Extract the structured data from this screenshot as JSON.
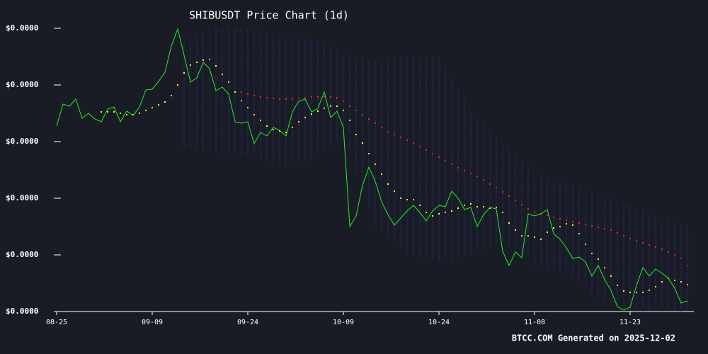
{
  "chart_data": {
    "type": "line",
    "title": "SHIBUSDT Price Chart (1d)",
    "footer": "BTCC.COM Generated on 2025-12-02",
    "categories": [
      "08-25",
      null,
      null,
      null,
      null,
      null,
      null,
      null,
      null,
      null,
      null,
      null,
      null,
      null,
      null,
      "09-09",
      null,
      null,
      null,
      null,
      null,
      null,
      null,
      null,
      null,
      null,
      null,
      null,
      null,
      null,
      "09-24",
      null,
      null,
      null,
      null,
      null,
      null,
      null,
      null,
      null,
      null,
      null,
      null,
      null,
      null,
      "10-09",
      null,
      null,
      null,
      null,
      null,
      null,
      null,
      null,
      null,
      null,
      null,
      null,
      null,
      null,
      "10-24",
      null,
      null,
      null,
      null,
      null,
      null,
      null,
      null,
      null,
      null,
      null,
      null,
      null,
      null,
      "11-08",
      null,
      null,
      null,
      null,
      null,
      null,
      null,
      null,
      null,
      null,
      null,
      null,
      null,
      null,
      "11-23",
      null,
      null,
      null,
      null,
      null,
      null,
      null,
      null,
      null
    ],
    "ylim": [
      7e-06,
      1.5e-05
    ],
    "yticks": [
      {
        "value": 7e-06,
        "label": "$0.0000"
      },
      {
        "value": 8.6e-06,
        "label": "$0.0000"
      },
      {
        "value": 1.02e-05,
        "label": "$0.0000"
      },
      {
        "value": 1.18e-05,
        "label": "$0.0000"
      },
      {
        "value": 1.34e-05,
        "label": "$0.0000"
      },
      {
        "value": 1.5e-05,
        "label": "$0.0000"
      }
    ],
    "band": {
      "color": "#2a2f8a",
      "upper": [
        null,
        null,
        null,
        null,
        null,
        null,
        null,
        null,
        null,
        null,
        null,
        null,
        null,
        null,
        null,
        null,
        null,
        null,
        null,
        null,
        1.46e-05,
        1.47e-05,
        1.48e-05,
        1.49e-05,
        1.496e-05,
        1.5e-05,
        1.5e-05,
        1.5e-05,
        1.5e-05,
        1.5e-05,
        1.5e-05,
        1.496e-05,
        1.492e-05,
        1.488e-05,
        1.484e-05,
        1.48e-05,
        1.476e-05,
        1.474e-05,
        1.472e-05,
        1.47e-05,
        1.47e-05,
        1.464e-05,
        1.456e-05,
        1.448e-05,
        1.44e-05,
        1.43e-05,
        1.424e-05,
        1.42e-05,
        1.416e-05,
        1.412e-05,
        1.41e-05,
        1.412e-05,
        1.414e-05,
        1.416e-05,
        1.418e-05,
        1.42e-05,
        1.42e-05,
        1.42e-05,
        1.42e-05,
        1.42e-05,
        1.42e-05,
        1.39e-05,
        1.36e-05,
        1.33e-05,
        1.3e-05,
        1.26e-05,
        1.244e-05,
        1.228e-05,
        1.212e-05,
        1.196e-05,
        1.18e-05,
        1.162e-05,
        1.144e-05,
        1.126e-05,
        1.108e-05,
        1.09e-05,
        1.084e-05,
        1.078e-05,
        1.072e-05,
        1.066e-05,
        1.06e-05,
        1.054e-05,
        1.048e-05,
        1.042e-05,
        1.036e-05,
        1.03e-05,
        1.024e-05,
        1.018e-05,
        1.012e-05,
        1.006e-05,
        1e-05,
        9.92e-06,
        9.84e-06,
        9.76e-06,
        9.68e-06,
        9.6e-06,
        9.56e-06,
        9.52e-06,
        9.48e-06,
        9.4e-06
      ],
      "lower": [
        null,
        null,
        null,
        null,
        null,
        null,
        null,
        null,
        null,
        null,
        null,
        null,
        null,
        null,
        null,
        null,
        null,
        null,
        null,
        null,
        1.16e-05,
        1.158e-05,
        1.156e-05,
        1.154e-05,
        1.152e-05,
        1.15e-05,
        1.148e-05,
        1.146e-05,
        1.144e-05,
        1.142e-05,
        1.14e-05,
        1.134e-05,
        1.128e-05,
        1.122e-05,
        1.116e-05,
        1.11e-05,
        1.114e-05,
        1.118e-05,
        1.122e-05,
        1.126e-05,
        1.13e-05,
        1.142e-05,
        1.154e-05,
        1.166e-05,
        1.178e-05,
        1.19e-05,
        1.14e-05,
        1.09e-05,
        1.04e-05,
        9.9e-06,
        9.4e-06,
        9.24e-06,
        9.08e-06,
        8.92e-06,
        8.76e-06,
        8.6e-06,
        8.56e-06,
        8.52e-06,
        8.48e-06,
        8.44e-06,
        8.4e-06,
        8.44e-06,
        8.48e-06,
        8.52e-06,
        8.56e-06,
        8.6e-06,
        8.68e-06,
        8.76e-06,
        8.84e-06,
        8.92e-06,
        9e-06,
        8.86e-06,
        8.72e-06,
        8.58e-06,
        8.44e-06,
        8.3e-06,
        8.26e-06,
        8.22e-06,
        8.18e-06,
        8.14e-06,
        8.1e-06,
        7.96e-06,
        7.82e-06,
        7.68e-06,
        7.54e-06,
        7.4e-06,
        7.32e-06,
        7.24e-06,
        7.16e-06,
        7.08e-06,
        7e-06,
        7e-06,
        7e-06,
        7e-06,
        7e-06,
        7e-06,
        7e-06,
        7e-06,
        7e-06,
        7e-06
      ]
    },
    "series": [
      {
        "color": "#ff2020",
        "mark": "dots",
        "values": [
          null,
          null,
          null,
          null,
          null,
          null,
          null,
          null,
          null,
          null,
          null,
          null,
          null,
          null,
          null,
          null,
          null,
          null,
          null,
          null,
          null,
          null,
          null,
          null,
          null,
          null,
          null,
          null,
          null,
          1.32e-05,
          1.314e-05,
          1.31e-05,
          1.306e-05,
          1.304e-05,
          1.302e-05,
          1.3e-05,
          1.3e-05,
          1.3e-05,
          1.302e-05,
          1.304e-05,
          1.306e-05,
          1.306e-05,
          1.306e-05,
          1.306e-05,
          1.304e-05,
          1.294e-05,
          1.28e-05,
          1.268e-05,
          1.256e-05,
          1.244e-05,
          1.232e-05,
          1.22e-05,
          1.208e-05,
          1.2e-05,
          1.192e-05,
          1.184e-05,
          1.176e-05,
          1.166e-05,
          1.156e-05,
          1.146e-05,
          1.136e-05,
          1.126e-05,
          1.116e-05,
          1.106e-05,
          1.098e-05,
          1.09e-05,
          1.082e-05,
          1.072e-05,
          1.06e-05,
          1.05e-05,
          1.038e-05,
          1.026e-05,
          1.014e-05,
          1.002e-05,
          9.9e-06,
          9.8e-06,
          9.76e-06,
          9.72e-06,
          9.66e-06,
          9.62e-06,
          9.58e-06,
          9.54e-06,
          9.5e-06,
          9.46e-06,
          9.42e-06,
          9.38e-06,
          9.34e-06,
          9.3e-06,
          9.22e-06,
          9.14e-06,
          9.06e-06,
          9e-06,
          8.94e-06,
          8.88e-06,
          8.82e-06,
          8.76e-06,
          8.68e-06,
          8.6e-06,
          8.5e-06,
          8.3e-06
        ]
      },
      {
        "color": "#ffff30",
        "mark": "dots",
        "values": [
          null,
          null,
          null,
          null,
          null,
          null,
          null,
          1.264e-05,
          1.264e-05,
          1.264e-05,
          1.26e-05,
          1.256e-05,
          1.256e-05,
          1.26e-05,
          1.268e-05,
          1.276e-05,
          1.284e-05,
          1.292e-05,
          1.31e-05,
          1.34e-05,
          1.374e-05,
          1.396e-05,
          1.404e-05,
          1.41e-05,
          1.412e-05,
          1.394e-05,
          1.37e-05,
          1.348e-05,
          1.32e-05,
          1.296e-05,
          1.276e-05,
          1.256e-05,
          1.24e-05,
          1.224e-05,
          1.214e-05,
          1.21e-05,
          1.206e-05,
          1.22e-05,
          1.236e-05,
          1.248e-05,
          1.258e-05,
          1.266e-05,
          1.274e-05,
          1.28e-05,
          1.28e-05,
          1.268e-05,
          1.24e-05,
          1.2e-05,
          1.176e-05,
          1.146e-05,
          1.116e-05,
          1.088e-05,
          1.06e-05,
          1.04e-05,
          1.02e-05,
          1.016e-05,
          1.016e-05,
          1e-05,
          9.8e-06,
          9.7e-06,
          9.76e-06,
          9.8e-06,
          9.84e-06,
          9.92e-06,
          1e-05,
          1.004e-05,
          9.96e-06,
          9.96e-06,
          9.92e-06,
          9.94e-06,
          9.8e-06,
          9.5e-06,
          9.3e-06,
          9.14e-06,
          9.14e-06,
          9.1e-06,
          9.04e-06,
          9.24e-06,
          9.36e-06,
          9.4e-06,
          9.48e-06,
          9.44e-06,
          9.2e-06,
          8.9e-06,
          8.64e-06,
          8.48e-06,
          8.24e-06,
          8e-06,
          7.74e-06,
          7.58e-06,
          7.54e-06,
          7.54e-06,
          7.54e-06,
          7.6e-06,
          7.7e-06,
          7.84e-06,
          7.94e-06,
          7.88e-06,
          7.84e-06,
          7.76e-06
        ]
      },
      {
        "color": "#22ee22",
        "mark": "line",
        "values": [
          1.224e-05,
          1.286e-05,
          1.28e-05,
          1.3e-05,
          1.246e-05,
          1.26e-05,
          1.244e-05,
          1.236e-05,
          1.272e-05,
          1.278e-05,
          1.236e-05,
          1.266e-05,
          1.254e-05,
          1.278e-05,
          1.326e-05,
          1.328e-05,
          1.35e-05,
          1.376e-05,
          1.45e-05,
          1.498e-05,
          1.424e-05,
          1.348e-05,
          1.36e-05,
          1.404e-05,
          1.386e-05,
          1.324e-05,
          1.334e-05,
          1.314e-05,
          1.236e-05,
          1.232e-05,
          1.236e-05,
          1.174e-05,
          1.206e-05,
          1.196e-05,
          1.22e-05,
          1.212e-05,
          1.196e-05,
          1.264e-05,
          1.294e-05,
          1.3e-05,
          1.264e-05,
          1.274e-05,
          1.32e-05,
          1.248e-05,
          1.266e-05,
          1.22e-05,
          9.4e-06,
          9.7e-06,
          1.056e-05,
          1.108e-05,
          1.068e-05,
          1.01e-05,
          9.74e-06,
          9.44e-06,
          9.64e-06,
          9.84e-06,
          1e-05,
          9.8e-06,
          9.56e-06,
          9.84e-06,
          1e-05,
          9.96e-06,
          1.04e-05,
          1.02e-05,
          9.88e-06,
          9.94e-06,
          9.4e-06,
          9.74e-06,
          9.94e-06,
          9.9e-06,
          8.7e-06,
          8.3e-06,
          8.68e-06,
          8.52e-06,
          9.76e-06,
          9.7e-06,
          9.76e-06,
          9.88e-06,
          9.2e-06,
          9.04e-06,
          8.8e-06,
          8.5e-06,
          8.54e-06,
          8.4e-06,
          8e-06,
          8.3e-06,
          7.9e-06,
          7.6e-06,
          7.14e-06,
          7.04e-06,
          7.12e-06,
          7.74e-06,
          8.24e-06,
          8e-06,
          8.2e-06,
          8.08e-06,
          7.94e-06,
          7.66e-06,
          7.24e-06,
          7.3e-06
        ]
      }
    ]
  }
}
